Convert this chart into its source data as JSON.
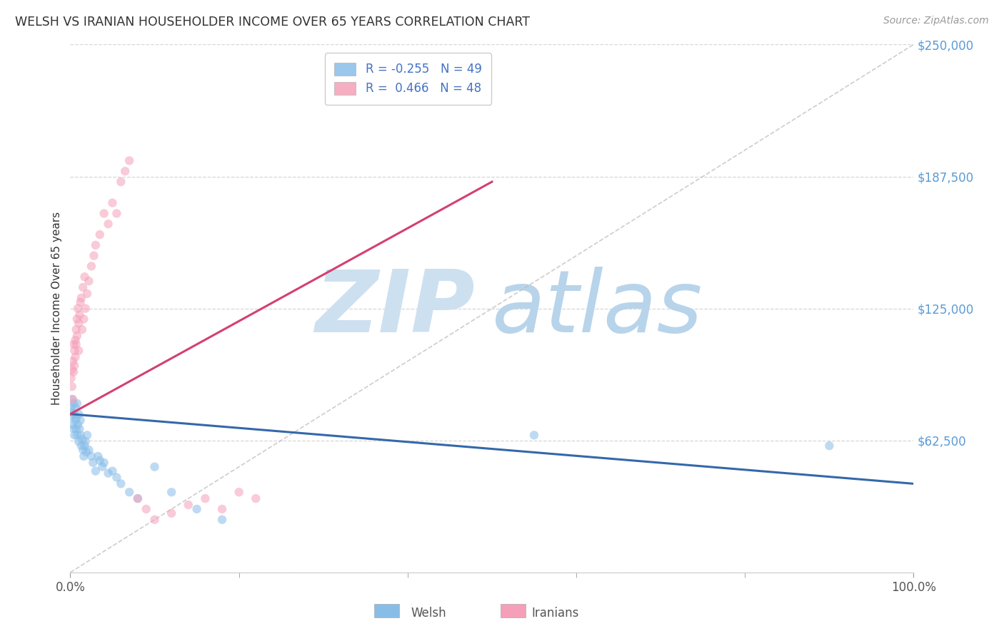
{
  "title": "WELSH VS IRANIAN HOUSEHOLDER INCOME OVER 65 YEARS CORRELATION CHART",
  "source": "Source: ZipAtlas.com",
  "ylabel": "Householder Income Over 65 years",
  "xlim": [
    0,
    1.0
  ],
  "ylim": [
    0,
    250000
  ],
  "yticks": [
    0,
    62500,
    125000,
    187500,
    250000
  ],
  "ytick_labels": [
    "",
    "$62,500",
    "$125,000",
    "$187,500",
    "$250,000"
  ],
  "xtick_positions": [
    0.0,
    1.0
  ],
  "xtick_labels": [
    "0.0%",
    "100.0%"
  ],
  "minor_xticks": [
    0.2,
    0.4,
    0.6,
    0.8
  ],
  "welsh_R": -0.255,
  "welsh_N": 49,
  "iranian_R": 0.466,
  "iranian_N": 48,
  "welsh_color": "#88bde8",
  "welsh_line_color": "#3468aa",
  "iranian_color": "#f5a0b8",
  "iranian_line_color": "#d44070",
  "scatter_alpha": 0.55,
  "scatter_size": 80,
  "background_color": "#ffffff",
  "grid_color": "#cccccc",
  "title_color": "#333333",
  "ytick_color": "#5b9bd5",
  "watermark_zip_color": "#cde0f0",
  "watermark_atlas_color": "#b8d4ea",
  "legend_welsh_label": "Welsh",
  "legend_iranian_label": "Iranians",
  "welsh_x": [
    0.001,
    0.002,
    0.002,
    0.003,
    0.003,
    0.004,
    0.004,
    0.005,
    0.005,
    0.006,
    0.006,
    0.007,
    0.007,
    0.008,
    0.008,
    0.009,
    0.01,
    0.01,
    0.011,
    0.012,
    0.012,
    0.013,
    0.014,
    0.015,
    0.016,
    0.017,
    0.018,
    0.019,
    0.02,
    0.022,
    0.025,
    0.027,
    0.03,
    0.033,
    0.035,
    0.038,
    0.04,
    0.045,
    0.05,
    0.055,
    0.06,
    0.07,
    0.08,
    0.1,
    0.12,
    0.15,
    0.18,
    0.55,
    0.9
  ],
  "welsh_y": [
    78000,
    74000,
    82000,
    76000,
    70000,
    80000,
    68000,
    75000,
    65000,
    72000,
    78000,
    73000,
    68000,
    80000,
    65000,
    70000,
    75000,
    62000,
    68000,
    72000,
    65000,
    60000,
    63000,
    58000,
    55000,
    60000,
    62000,
    57000,
    65000,
    58000,
    55000,
    52000,
    48000,
    55000,
    53000,
    50000,
    52000,
    47000,
    48000,
    45000,
    42000,
    38000,
    35000,
    50000,
    38000,
    30000,
    25000,
    65000,
    60000
  ],
  "iranian_x": [
    0.001,
    0.002,
    0.002,
    0.003,
    0.003,
    0.004,
    0.004,
    0.005,
    0.005,
    0.006,
    0.006,
    0.007,
    0.007,
    0.008,
    0.008,
    0.009,
    0.01,
    0.01,
    0.011,
    0.012,
    0.013,
    0.014,
    0.015,
    0.016,
    0.017,
    0.018,
    0.02,
    0.022,
    0.025,
    0.028,
    0.03,
    0.035,
    0.04,
    0.045,
    0.05,
    0.055,
    0.06,
    0.065,
    0.07,
    0.08,
    0.09,
    0.1,
    0.12,
    0.14,
    0.16,
    0.18,
    0.2,
    0.22
  ],
  "iranian_y": [
    92000,
    88000,
    96000,
    82000,
    100000,
    95000,
    108000,
    105000,
    98000,
    110000,
    102000,
    115000,
    108000,
    120000,
    112000,
    125000,
    118000,
    105000,
    122000,
    128000,
    130000,
    115000,
    135000,
    120000,
    140000,
    125000,
    132000,
    138000,
    145000,
    150000,
    155000,
    160000,
    170000,
    165000,
    175000,
    170000,
    185000,
    190000,
    195000,
    35000,
    30000,
    25000,
    28000,
    32000,
    35000,
    30000,
    38000,
    35000
  ],
  "welsh_line_x": [
    0.0,
    1.0
  ],
  "welsh_line_y": [
    75000,
    42000
  ],
  "iranian_line_x": [
    0.0,
    0.5
  ],
  "iranian_line_y": [
    75000,
    185000
  ]
}
